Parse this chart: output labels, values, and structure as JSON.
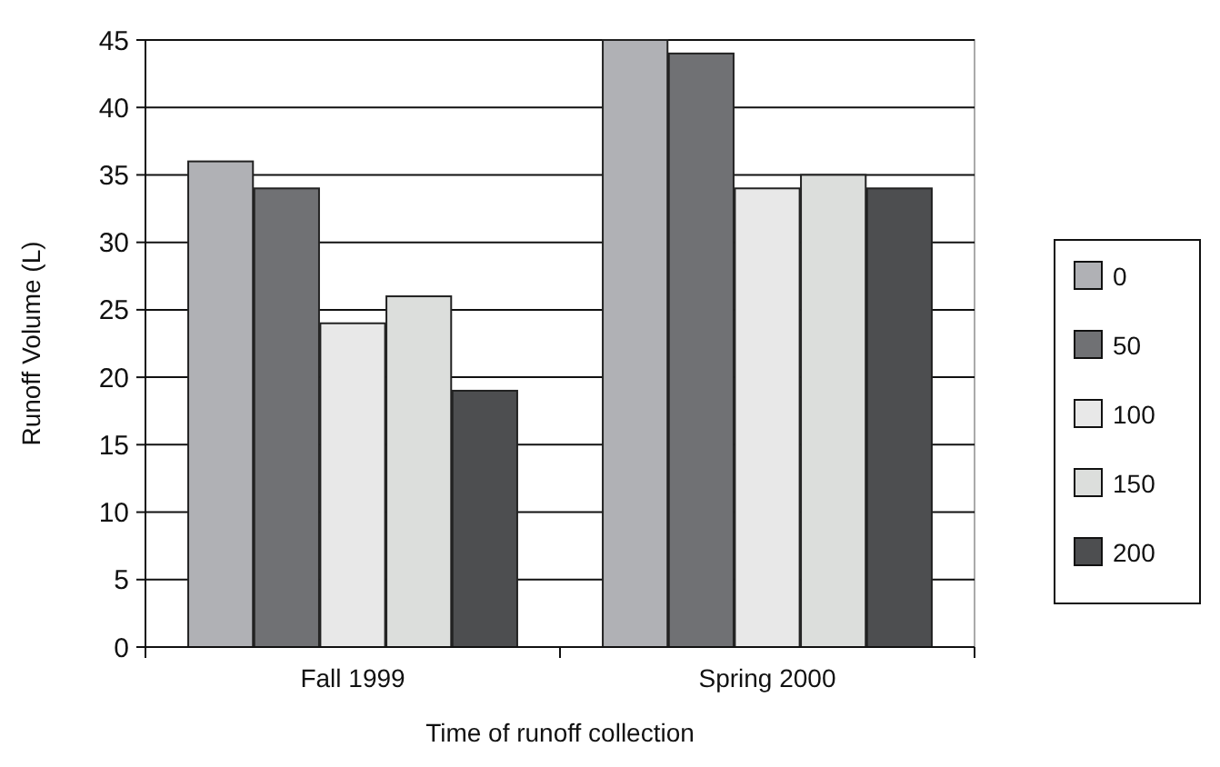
{
  "chart_data": {
    "type": "bar",
    "xlabel": "Time of runoff collection",
    "ylabel": "Runoff Volume (L)",
    "categories": [
      "Fall 1999",
      "Spring 2000"
    ],
    "series": [
      {
        "name": "0",
        "color": "#b0b1b5",
        "values": [
          36,
          45
        ]
      },
      {
        "name": "50",
        "color": "#707174",
        "values": [
          34,
          44
        ]
      },
      {
        "name": "100",
        "color": "#e8e8e8",
        "values": [
          24,
          34
        ]
      },
      {
        "name": "150",
        "color": "#dcdedc",
        "values": [
          26,
          35
        ]
      },
      {
        "name": "200",
        "color": "#4d4e50",
        "values": [
          19,
          34
        ]
      }
    ],
    "ylim": [
      0,
      45
    ],
    "yticks": [
      0,
      5,
      10,
      15,
      20,
      25,
      30,
      35,
      40,
      45
    ],
    "grid": "y",
    "legend": "right"
  }
}
